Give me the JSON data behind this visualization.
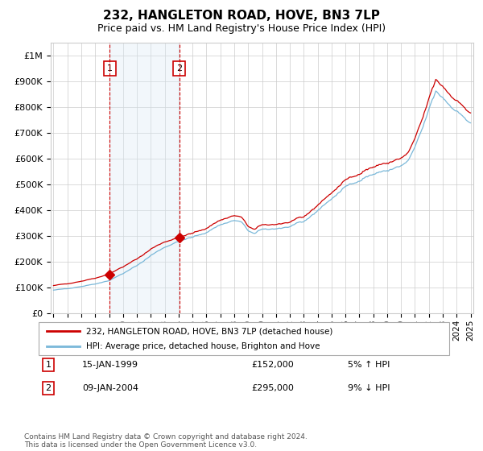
{
  "title": "232, HANGLETON ROAD, HOVE, BN3 7LP",
  "subtitle": "Price paid vs. HM Land Registry's House Price Index (HPI)",
  "hpi_label": "HPI: Average price, detached house, Brighton and Hove",
  "price_label": "232, HANGLETON ROAD, HOVE, BN3 7LP (detached house)",
  "transaction1": {
    "date": "15-JAN-1999",
    "price": 152000,
    "pct": "5% ↑ HPI",
    "label": "1"
  },
  "transaction2": {
    "date": "09-JAN-2004",
    "price": 295000,
    "pct": "9% ↓ HPI",
    "label": "2"
  },
  "ylim": [
    0,
    1050000
  ],
  "yticks": [
    0,
    100000,
    200000,
    300000,
    400000,
    500000,
    600000,
    700000,
    800000,
    900000,
    1000000
  ],
  "ytick_labels": [
    "£0",
    "£100K",
    "£200K",
    "£300K",
    "£400K",
    "£500K",
    "£600K",
    "£700K",
    "£800K",
    "£900K",
    "£1M"
  ],
  "hpi_color": "#7ab8d9",
  "price_color": "#cc0000",
  "shade_color": "#daeaf5",
  "grid_color": "#cccccc",
  "bg_color": "#ffffff",
  "marker_color": "#cc0000",
  "vline_color": "#cc0000",
  "box_color": "#cc0000",
  "footer": "Contains HM Land Registry data © Crown copyright and database right 2024.\nThis data is licensed under the Open Government Licence v3.0.",
  "x_start_year": 1995,
  "x_end_year": 2025,
  "transaction1_year": 1999.04,
  "transaction2_year": 2004.04
}
